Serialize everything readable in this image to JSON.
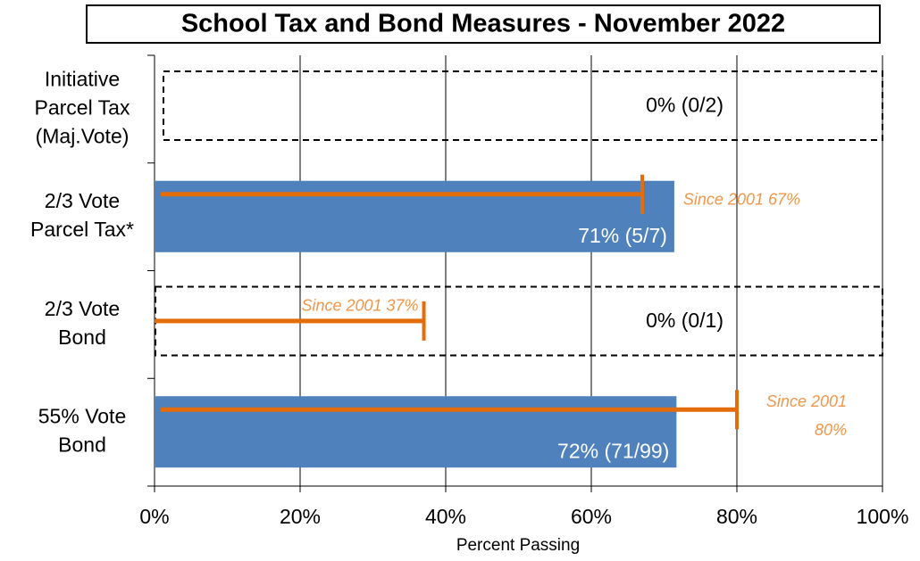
{
  "chart_data": {
    "type": "bar",
    "orientation": "horizontal",
    "title": "School Tax and Bond Measures - November 2022",
    "xlabel": "Percent Passing",
    "categories": [
      [
        "Initiative",
        "Parcel Tax",
        "(Maj.Vote)"
      ],
      [
        "2/3 Vote",
        "Parcel Tax*"
      ],
      [
        "2/3 Vote",
        "Bond"
      ],
      [
        "55% Vote",
        "Bond"
      ]
    ],
    "values": [
      0,
      71.4,
      0,
      71.7
    ],
    "value_labels": [
      "0% (0/2)",
      "71% (5/7)",
      "0% (0/1)",
      "72% (71/99)"
    ],
    "color": "#4f81bd",
    "markers": {
      "values": [
        null,
        67,
        37,
        80
      ],
      "color": "#e46c0a",
      "value_labels": [
        null,
        [
          "Since 2001 67%"
        ],
        [
          "Since 2001 37%"
        ],
        [
          "Since 2001",
          "80%"
        ]
      ],
      "label_color": "#f0964a"
    },
    "xlim": [
      0,
      100
    ],
    "xticks": [
      {
        "value": 0,
        "label": "0%"
      },
      {
        "value": 20,
        "label": "20%"
      },
      {
        "value": 40,
        "label": "40%"
      },
      {
        "value": 60,
        "label": "60%"
      },
      {
        "value": 80,
        "label": "80%"
      },
      {
        "value": 100,
        "label": "100%"
      }
    ],
    "grid": true
  }
}
